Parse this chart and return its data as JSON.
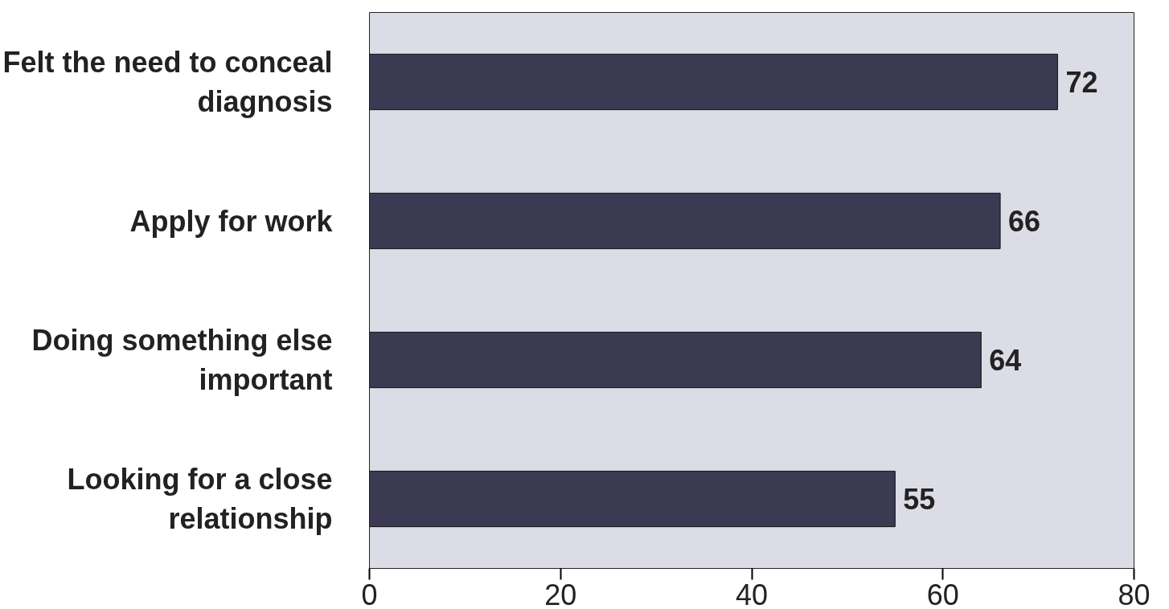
{
  "chart_data": {
    "type": "bar",
    "orientation": "horizontal",
    "categories": [
      "Felt the need to conceal diagnosis",
      "Apply for work",
      "Doing something else important",
      "Looking for a close relationship"
    ],
    "values": [
      72,
      66,
      64,
      55
    ],
    "color": "#3b3a52",
    "xlim": [
      0,
      80
    ],
    "xticks": [
      0,
      20,
      40,
      60,
      80
    ],
    "data_labels": true,
    "grid": false
  }
}
